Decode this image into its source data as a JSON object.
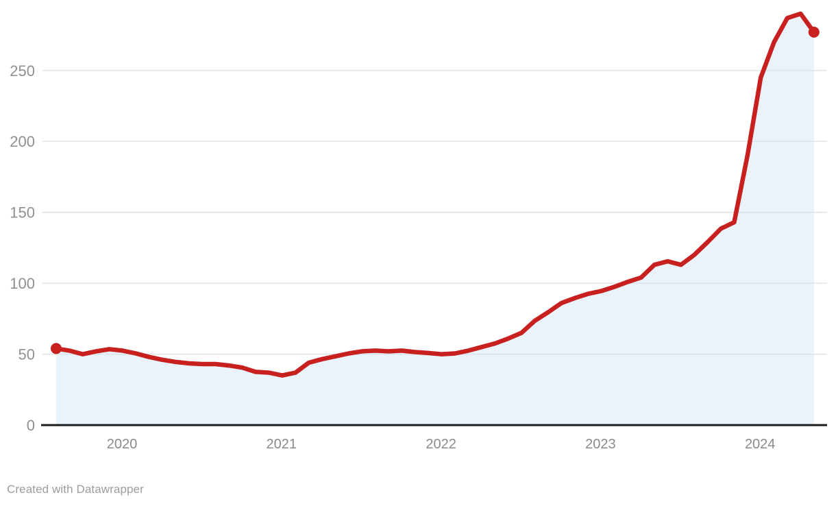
{
  "footer": {
    "credit": "Created with Datawrapper"
  },
  "chart_data": {
    "type": "area",
    "title": "",
    "subtitle": "",
    "legend": "none",
    "grid": "horizontal",
    "x_tick_labels": [
      "2020",
      "2021",
      "2022",
      "2023",
      "2024"
    ],
    "x_tick_point_indices": [
      4.95,
      16.95,
      28.95,
      40.95,
      52.95
    ],
    "y_ticks": [
      0,
      50,
      100,
      150,
      200,
      250
    ],
    "ylim": [
      0,
      292
    ],
    "x_cadence": "monthly points, ~Aug 2019 through ~May 2024 (58 points)",
    "series": [
      {
        "name": "value",
        "values": [
          54,
          52.5,
          50,
          52,
          53.5,
          52.5,
          50.5,
          48,
          46,
          44.5,
          43.5,
          43,
          43,
          42,
          40.5,
          37.5,
          37,
          35,
          37,
          44,
          46.5,
          48.5,
          50.5,
          52,
          52.5,
          52,
          52.5,
          51.5,
          50.8,
          50,
          50.5,
          52.5,
          55,
          57.5,
          61,
          65,
          73.5,
          79.5,
          86,
          89.5,
          92.5,
          94.5,
          97.5,
          101,
          104,
          113,
          115.5,
          113,
          120,
          129,
          138.5,
          143,
          190,
          245,
          270,
          287,
          290,
          277
        ]
      }
    ],
    "markers": {
      "first_point_dot": true,
      "last_point_dot": true
    },
    "start_value": 54,
    "end_value": 277,
    "colors": {
      "line": "#c7201f",
      "area_fill": "#cfe5f2",
      "gridline": "#e0e0e0",
      "baseline": "#1c1c1c",
      "axis_label": "#909090"
    }
  }
}
